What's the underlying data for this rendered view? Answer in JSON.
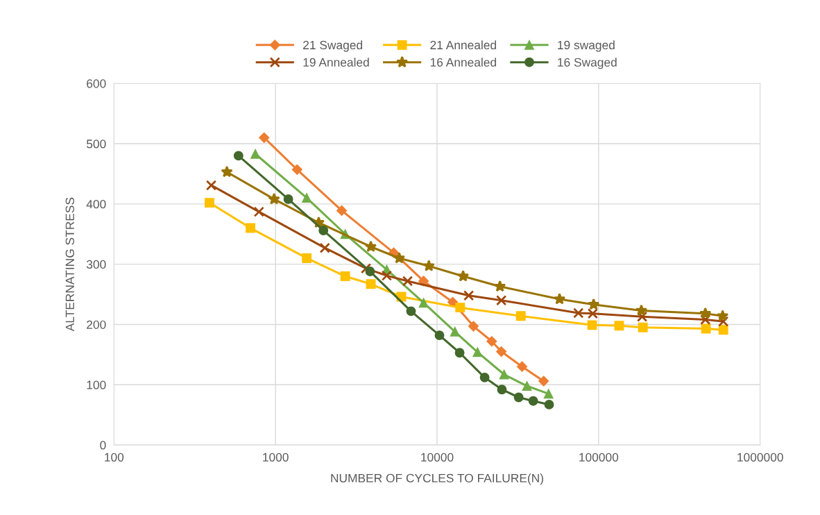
{
  "chart_data": {
    "type": "line",
    "xlabel": "NUMBER OF CYCLES TO FAILURE(N)",
    "ylabel": "ALTERNATING STRESS",
    "log": "x",
    "xlim": [
      100,
      1000000
    ],
    "xticks": [
      100,
      1000,
      10000,
      100000,
      1000000
    ],
    "ylim": [
      0,
      600
    ],
    "yticks": [
      0,
      100,
      200,
      300,
      400,
      500,
      600
    ],
    "grid": true,
    "legend": "top",
    "line_style": "solid",
    "series": [
      {
        "name": "21 Swaged",
        "color": "#ed7d31",
        "marker": "diamond",
        "x": [
          850,
          1360,
          2570,
          5390,
          8250,
          12500,
          16800,
          21800,
          25000,
          33600,
          45700
        ],
        "values": [
          510,
          457,
          389,
          319,
          272,
          237,
          197,
          172,
          155,
          130,
          106
        ]
      },
      {
        "name": "21 Annealed",
        "color": "#ffc000",
        "marker": "square",
        "x": [
          390,
          700,
          1560,
          2700,
          3890,
          6010,
          13900,
          33000,
          91200,
          134000,
          188000,
          462000,
          592000
        ],
        "values": [
          402,
          360,
          310,
          280,
          267,
          246,
          228,
          214,
          199,
          198,
          195,
          193,
          191
        ]
      },
      {
        "name": "19 swaged",
        "color": "#70ad47",
        "marker": "triangle",
        "x": [
          750,
          1560,
          2700,
          4880,
          8250,
          12900,
          17800,
          26000,
          36000,
          49000
        ],
        "values": [
          483,
          410,
          350,
          291,
          236,
          188,
          154,
          117,
          98,
          85
        ]
      },
      {
        "name": "19 Annealed",
        "color": "#9e480e",
        "marker": "cross",
        "x": [
          400,
          790,
          2020,
          3630,
          4880,
          6570,
          15700,
          25000,
          75000,
          92000,
          186000,
          458000,
          592000
        ],
        "values": [
          431,
          387,
          327,
          293,
          281,
          272,
          248,
          240,
          219,
          218,
          213,
          208,
          205
        ]
      },
      {
        "name": "16 Annealed",
        "color": "#997300",
        "marker": "star",
        "x": [
          500,
          980,
          1850,
          3890,
          5830,
          8900,
          14500,
          24500,
          57300,
          93100,
          184000,
          458000,
          586000
        ],
        "values": [
          453,
          408,
          369,
          329,
          310,
          297,
          280,
          263,
          242,
          233,
          223,
          218,
          214
        ]
      },
      {
        "name": "16 Swaged",
        "color": "#43682b",
        "marker": "circle",
        "x": [
          590,
          1200,
          1980,
          3850,
          6900,
          10350,
          13800,
          19700,
          25200,
          32000,
          39400,
          49400
        ],
        "values": [
          480,
          408,
          356,
          288,
          222,
          182,
          153,
          112,
          92,
          79,
          73,
          67
        ]
      }
    ]
  }
}
